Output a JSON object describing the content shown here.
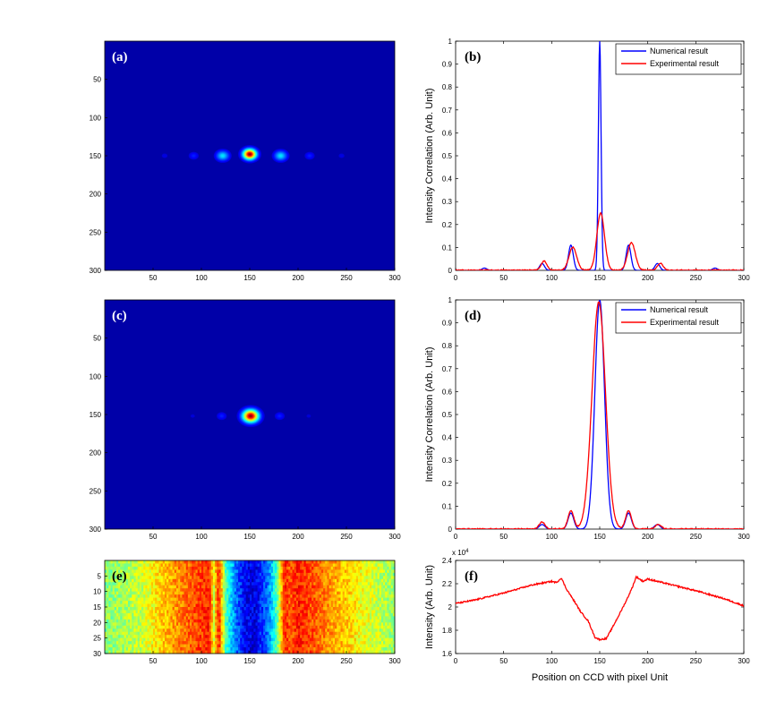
{
  "chart_data": [
    {
      "id": "a",
      "type": "heatmap",
      "panel_label": "(a)",
      "xticks": [
        50,
        100,
        150,
        200,
        250,
        300
      ],
      "yticks": [
        50,
        100,
        150,
        200,
        250,
        300
      ],
      "xlim": [
        0,
        300
      ],
      "ylim": [
        0,
        300
      ],
      "spots": [
        {
          "x": 150,
          "y": 148,
          "amp": 1.0,
          "sx": 5,
          "sy": 5
        },
        {
          "x": 122,
          "y": 150,
          "amp": 0.33,
          "sx": 5,
          "sy": 5
        },
        {
          "x": 182,
          "y": 150,
          "amp": 0.33,
          "sx": 5,
          "sy": 5
        },
        {
          "x": 92,
          "y": 150,
          "amp": 0.12,
          "sx": 4,
          "sy": 4
        },
        {
          "x": 212,
          "y": 150,
          "amp": 0.12,
          "sx": 4,
          "sy": 4
        },
        {
          "x": 62,
          "y": 150,
          "amp": 0.06,
          "sx": 4,
          "sy": 4
        },
        {
          "x": 245,
          "y": 150,
          "amp": 0.06,
          "sx": 4,
          "sy": 4
        }
      ]
    },
    {
      "id": "b",
      "type": "line",
      "panel_label": "(b)",
      "ylabel": "Intensity Correlation (Arb. Unit)",
      "xlim": [
        0,
        300
      ],
      "ylim": [
        0,
        1
      ],
      "xticks": [
        0,
        50,
        100,
        150,
        200,
        250,
        300
      ],
      "yticks": [
        0,
        0.1,
        0.2,
        0.3,
        0.4,
        0.5,
        0.6,
        0.7,
        0.8,
        0.9,
        1
      ],
      "legend_position": "top-right",
      "series": [
        {
          "name": "Numerical result",
          "color": "#0000ff",
          "peaks": [
            {
              "x": 150,
              "amp": 1.0,
              "w": 1.4
            },
            {
              "x": 120,
              "amp": 0.11,
              "w": 2.5
            },
            {
              "x": 180,
              "amp": 0.11,
              "w": 2.5
            },
            {
              "x": 90,
              "amp": 0.03,
              "w": 2.5
            },
            {
              "x": 210,
              "amp": 0.03,
              "w": 2.5
            },
            {
              "x": 30,
              "amp": 0.01,
              "w": 2.5
            },
            {
              "x": 270,
              "amp": 0.01,
              "w": 2.5
            }
          ]
        },
        {
          "name": "Experimental result",
          "color": "#ff0000",
          "peaks": [
            {
              "x": 151,
              "amp": 0.25,
              "w": 4
            },
            {
              "x": 122,
              "amp": 0.1,
              "w": 4
            },
            {
              "x": 183,
              "amp": 0.12,
              "w": 4
            },
            {
              "x": 92,
              "amp": 0.04,
              "w": 3
            },
            {
              "x": 213,
              "amp": 0.03,
              "w": 3
            }
          ]
        }
      ]
    },
    {
      "id": "c",
      "type": "heatmap",
      "panel_label": "(c)",
      "xticks": [
        50,
        100,
        150,
        200,
        250,
        300
      ],
      "yticks": [
        50,
        100,
        150,
        200,
        250,
        300
      ],
      "xlim": [
        0,
        300
      ],
      "ylim": [
        0,
        300
      ],
      "spots": [
        {
          "x": 151,
          "y": 152,
          "amp": 1.0,
          "sx": 6,
          "sy": 6
        },
        {
          "x": 121,
          "y": 152,
          "amp": 0.12,
          "sx": 4,
          "sy": 4
        },
        {
          "x": 181,
          "y": 152,
          "amp": 0.12,
          "sx": 4,
          "sy": 4
        },
        {
          "x": 91,
          "y": 152,
          "amp": 0.05,
          "sx": 4,
          "sy": 4
        },
        {
          "x": 211,
          "y": 152,
          "amp": 0.05,
          "sx": 4,
          "sy": 4
        }
      ]
    },
    {
      "id": "d",
      "type": "line",
      "panel_label": "(d)",
      "ylabel": "Intensity Correlation (Arb. Unit)",
      "xlim": [
        0,
        300
      ],
      "ylim": [
        0,
        1
      ],
      "xticks": [
        0,
        50,
        100,
        150,
        200,
        250,
        300
      ],
      "yticks": [
        0,
        0.1,
        0.2,
        0.3,
        0.4,
        0.5,
        0.6,
        0.7,
        0.8,
        0.9,
        1
      ],
      "legend_position": "top-right",
      "series": [
        {
          "name": "Numerical result",
          "color": "#0000ff",
          "peaks": [
            {
              "x": 150,
              "amp": 1.0,
              "w": 5
            },
            {
              "x": 120,
              "amp": 0.07,
              "w": 3
            },
            {
              "x": 180,
              "amp": 0.07,
              "w": 3
            },
            {
              "x": 90,
              "amp": 0.02,
              "w": 3
            },
            {
              "x": 210,
              "amp": 0.02,
              "w": 3
            }
          ]
        },
        {
          "name": "Experimental result",
          "color": "#ff0000",
          "peaks": [
            {
              "x": 149,
              "amp": 0.99,
              "w": 7
            },
            {
              "x": 120,
              "amp": 0.08,
              "w": 3
            },
            {
              "x": 180,
              "amp": 0.08,
              "w": 3
            },
            {
              "x": 90,
              "amp": 0.03,
              "w": 3
            },
            {
              "x": 211,
              "amp": 0.02,
              "w": 3
            }
          ]
        }
      ]
    },
    {
      "id": "e",
      "type": "heatmap",
      "panel_label": "(e)",
      "xticks": [
        50,
        100,
        150,
        200,
        250,
        300
      ],
      "yticks": [
        5,
        10,
        15,
        20,
        25,
        30
      ],
      "xlim": [
        0,
        300
      ],
      "ylim": [
        0,
        30
      ],
      "profile_points": [
        [
          0,
          0.5
        ],
        [
          40,
          0.58
        ],
        [
          70,
          0.72
        ],
        [
          100,
          0.82
        ],
        [
          108,
          0.85
        ],
        [
          113,
          0.6
        ],
        [
          118,
          0.85
        ],
        [
          125,
          0.45
        ],
        [
          135,
          0.25
        ],
        [
          145,
          0.12
        ],
        [
          155,
          0.1
        ],
        [
          168,
          0.22
        ],
        [
          178,
          0.45
        ],
        [
          186,
          0.85
        ],
        [
          192,
          0.78
        ],
        [
          200,
          0.85
        ],
        [
          230,
          0.74
        ],
        [
          265,
          0.62
        ],
        [
          300,
          0.52
        ]
      ]
    },
    {
      "id": "f",
      "type": "line",
      "panel_label": "(f)",
      "ylabel": "Intensity (Arb. Unit)",
      "xlabel": "Position on CCD with pixel Unit",
      "exponent_label": "x 10",
      "exponent_power": "4",
      "xlim": [
        0,
        300
      ],
      "ylim": [
        1.6,
        2.4
      ],
      "xticks": [
        0,
        50,
        100,
        150,
        200,
        250,
        300
      ],
      "yticks": [
        1.6,
        1.8,
        2.0,
        2.2,
        2.4
      ],
      "ytick_labels": [
        "1.6",
        "1.8",
        "2",
        "2.2",
        "2.4"
      ],
      "series": [
        {
          "color": "#ff0000",
          "points": [
            [
              0,
              2.03
            ],
            [
              20,
              2.06
            ],
            [
              50,
              2.12
            ],
            [
              80,
              2.19
            ],
            [
              100,
              2.22
            ],
            [
              105,
              2.21
            ],
            [
              110,
              2.25
            ],
            [
              115,
              2.16
            ],
            [
              125,
              2.03
            ],
            [
              130,
              1.96
            ],
            [
              138,
              1.88
            ],
            [
              145,
              1.74
            ],
            [
              150,
              1.72
            ],
            [
              157,
              1.73
            ],
            [
              163,
              1.82
            ],
            [
              170,
              1.93
            ],
            [
              178,
              2.06
            ],
            [
              184,
              2.17
            ],
            [
              188,
              2.26
            ],
            [
              195,
              2.22
            ],
            [
              200,
              2.24
            ],
            [
              220,
              2.2
            ],
            [
              250,
              2.14
            ],
            [
              280,
              2.07
            ],
            [
              300,
              2.01
            ]
          ]
        }
      ]
    }
  ]
}
